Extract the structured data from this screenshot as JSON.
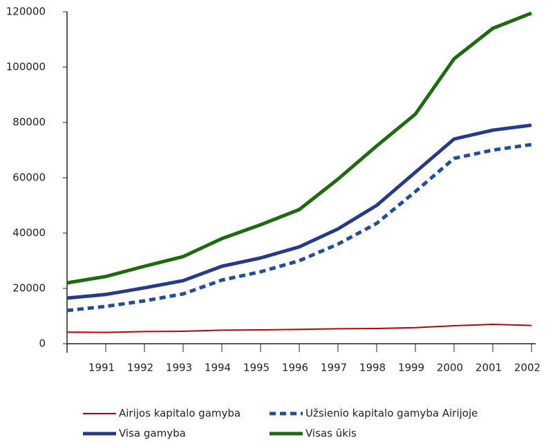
{
  "chart_data": {
    "type": "line",
    "categories": [
      null,
      "1991",
      "1992",
      "1993",
      "1994",
      "1995",
      "1996",
      "1997",
      "1998",
      "1999",
      "2000",
      "2001",
      "2002"
    ],
    "series": [
      {
        "name": "Airijos kapitalo gamyba",
        "color": "#c00000",
        "width": 2,
        "dashed": false,
        "values": [
          4200,
          4100,
          4400,
          4500,
          4900,
          5000,
          5200,
          5400,
          5500,
          5800,
          6500,
          7000,
          6600
        ]
      },
      {
        "name": "Užsienio kapitalo gamyba Airijoje",
        "color": "#1f4e9c",
        "width": 5,
        "dashed": true,
        "values": [
          12000,
          13500,
          15500,
          18000,
          23000,
          26000,
          30000,
          36000,
          43500,
          55000,
          67000,
          70000,
          72000
        ]
      },
      {
        "name": "Visa gamyba",
        "color": "#253b8a",
        "width": 5,
        "dashed": false,
        "values": [
          16500,
          17800,
          20200,
          22800,
          28000,
          31000,
          35000,
          41500,
          50000,
          62000,
          74000,
          77200,
          79000
        ]
      },
      {
        "name": "Visas ūkis",
        "color": "#1c6b0c",
        "width": 5,
        "dashed": false,
        "values": [
          22000,
          24300,
          28000,
          31500,
          38000,
          43000,
          48500,
          59500,
          71500,
          83000,
          103000,
          114000,
          119500
        ]
      }
    ],
    "ylim": [
      0,
      120000
    ],
    "yticks": [
      0,
      20000,
      40000,
      60000,
      80000,
      100000,
      120000
    ],
    "grid": false
  }
}
